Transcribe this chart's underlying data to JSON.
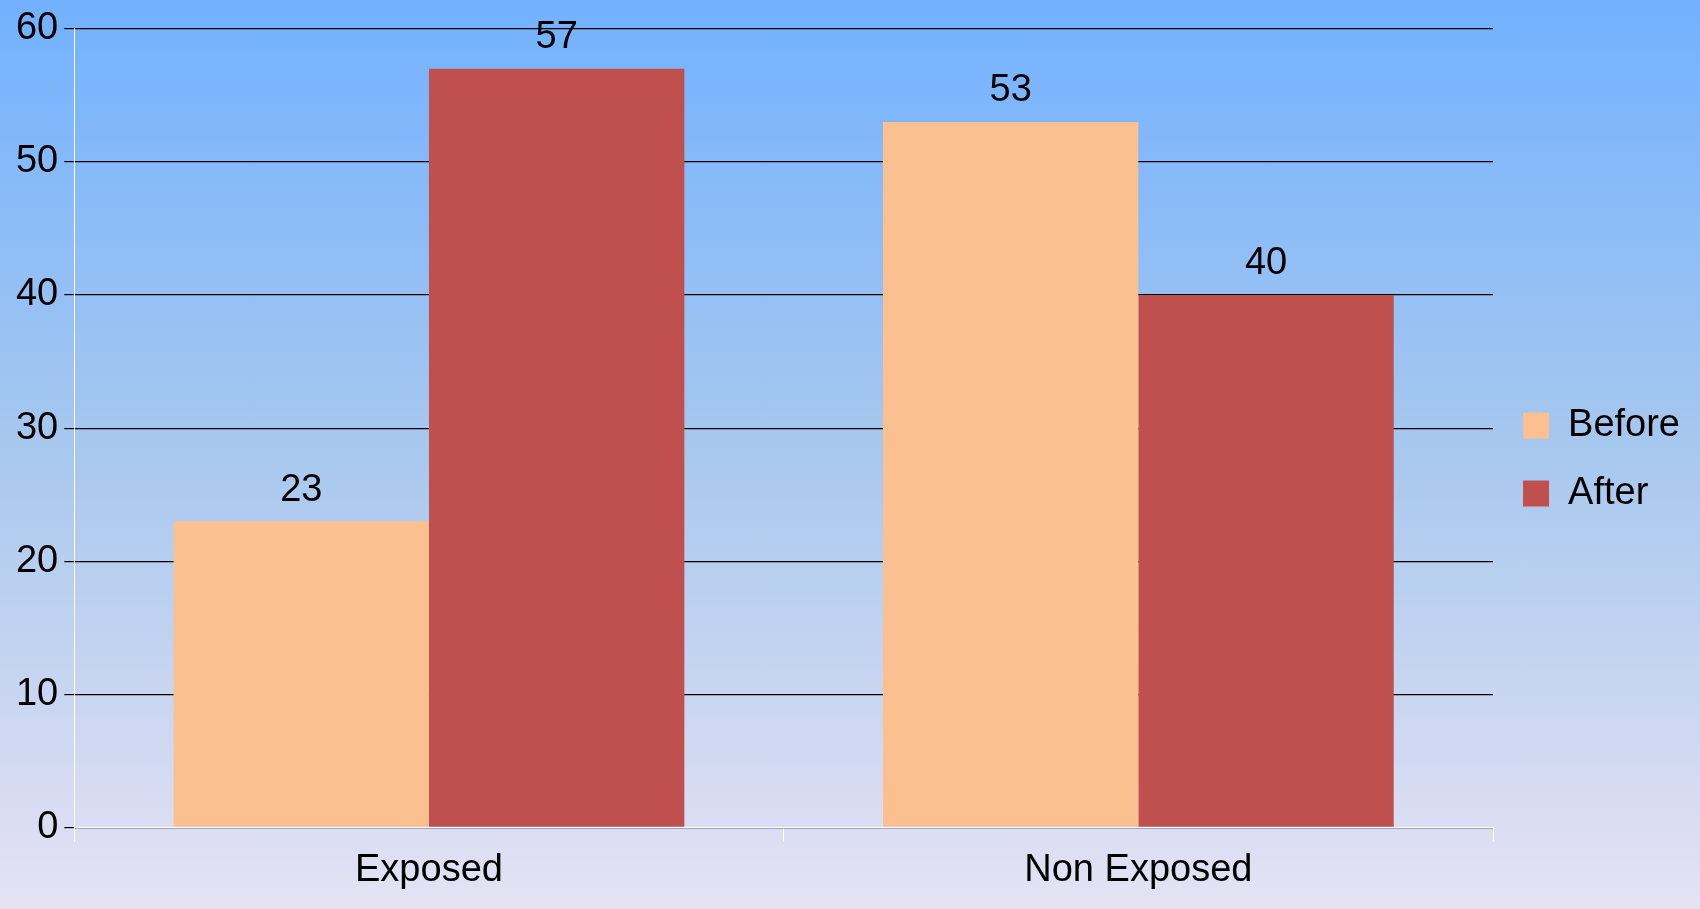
{
  "chart_data": {
    "type": "bar",
    "categories": [
      "Exposed",
      "Non Exposed"
    ],
    "series": [
      {
        "name": "Before",
        "color": "#fac090",
        "values": [
          23,
          53
        ]
      },
      {
        "name": "After",
        "color": "#c0504d",
        "values": [
          57,
          40
        ]
      }
    ],
    "ylim": [
      0,
      60
    ],
    "yticks": [
      0,
      10,
      20,
      30,
      40,
      50,
      60
    ],
    "grid": "y",
    "legend": "right",
    "data_labels": true
  }
}
